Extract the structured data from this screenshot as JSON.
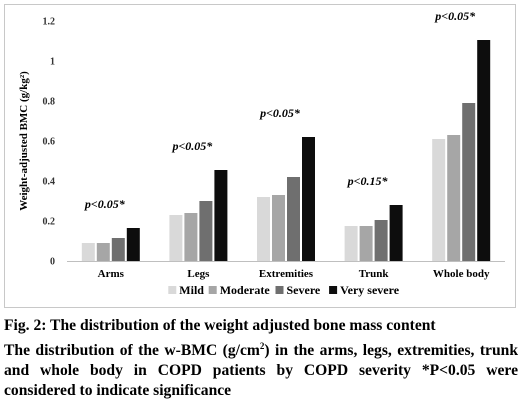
{
  "chart_data": {
    "type": "bar",
    "ylabel": "Weight-adjusted BMC (g/kg²)",
    "ylim": [
      0,
      1.2
    ],
    "yticks": [
      "0",
      "0.2",
      "0.4",
      "0.6",
      "0.8",
      "1",
      "1.2"
    ],
    "categories": [
      "Arms",
      "Legs",
      "Extremities",
      "Trunk",
      "Whole body"
    ],
    "series": [
      {
        "name": "Mild",
        "color": "#d9d9d9",
        "values": [
          0.09,
          0.23,
          0.32,
          0.175,
          0.61
        ]
      },
      {
        "name": "Moderate",
        "color": "#a6a6a6",
        "values": [
          0.09,
          0.24,
          0.33,
          0.175,
          0.63
        ]
      },
      {
        "name": "Severe",
        "color": "#6f6f6f",
        "values": [
          0.115,
          0.3,
          0.42,
          0.205,
          0.79
        ]
      },
      {
        "name": "Very severe",
        "color": "#0d0d0d",
        "values": [
          0.165,
          0.455,
          0.62,
          0.28,
          1.105
        ]
      }
    ],
    "annotations": [
      "p<0.05*",
      "p<0.05*",
      "p<0.05*",
      "p<0.15*",
      "p<0.05*"
    ],
    "legend_position": "bottom"
  },
  "caption": {
    "title": "Fig. 2: The distribution of the weight adjusted bone mass content",
    "body_pre": "The distribution of the w-BMC (g/cm",
    "body_sup": "2",
    "body_post": ") in the arms, legs, extremities, trunk and whole body in COPD patients by COPD severity *P<0.05 were considered to indicate significance"
  }
}
